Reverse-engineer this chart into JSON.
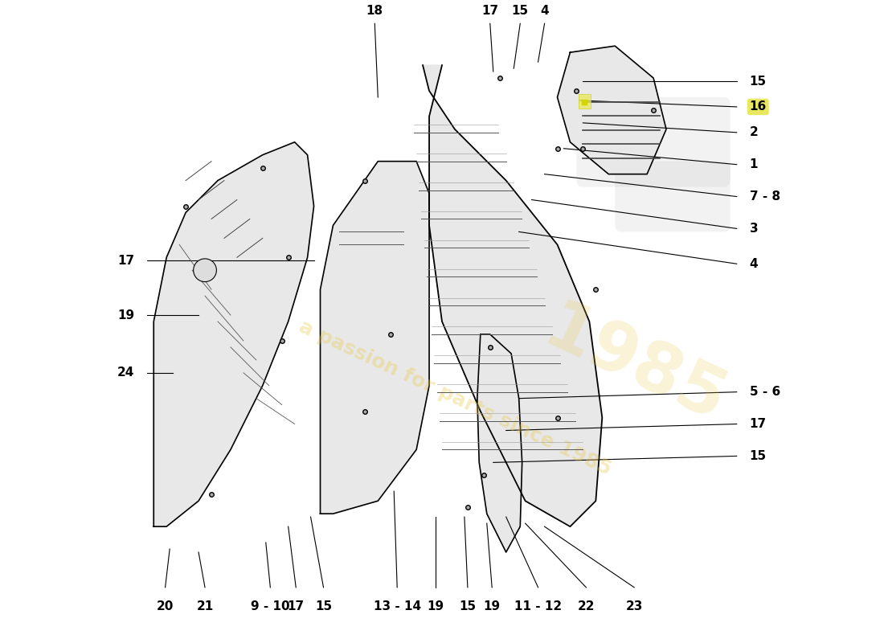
{
  "bg_color": "#ffffff",
  "watermark_text": "a passion for parts since 1985",
  "watermark_color": "#e8c84a",
  "watermark_alpha": 0.35,
  "label_fontsize": 11,
  "label_color": "#000000",
  "line_color": "#000000",
  "line_width": 0.8
}
